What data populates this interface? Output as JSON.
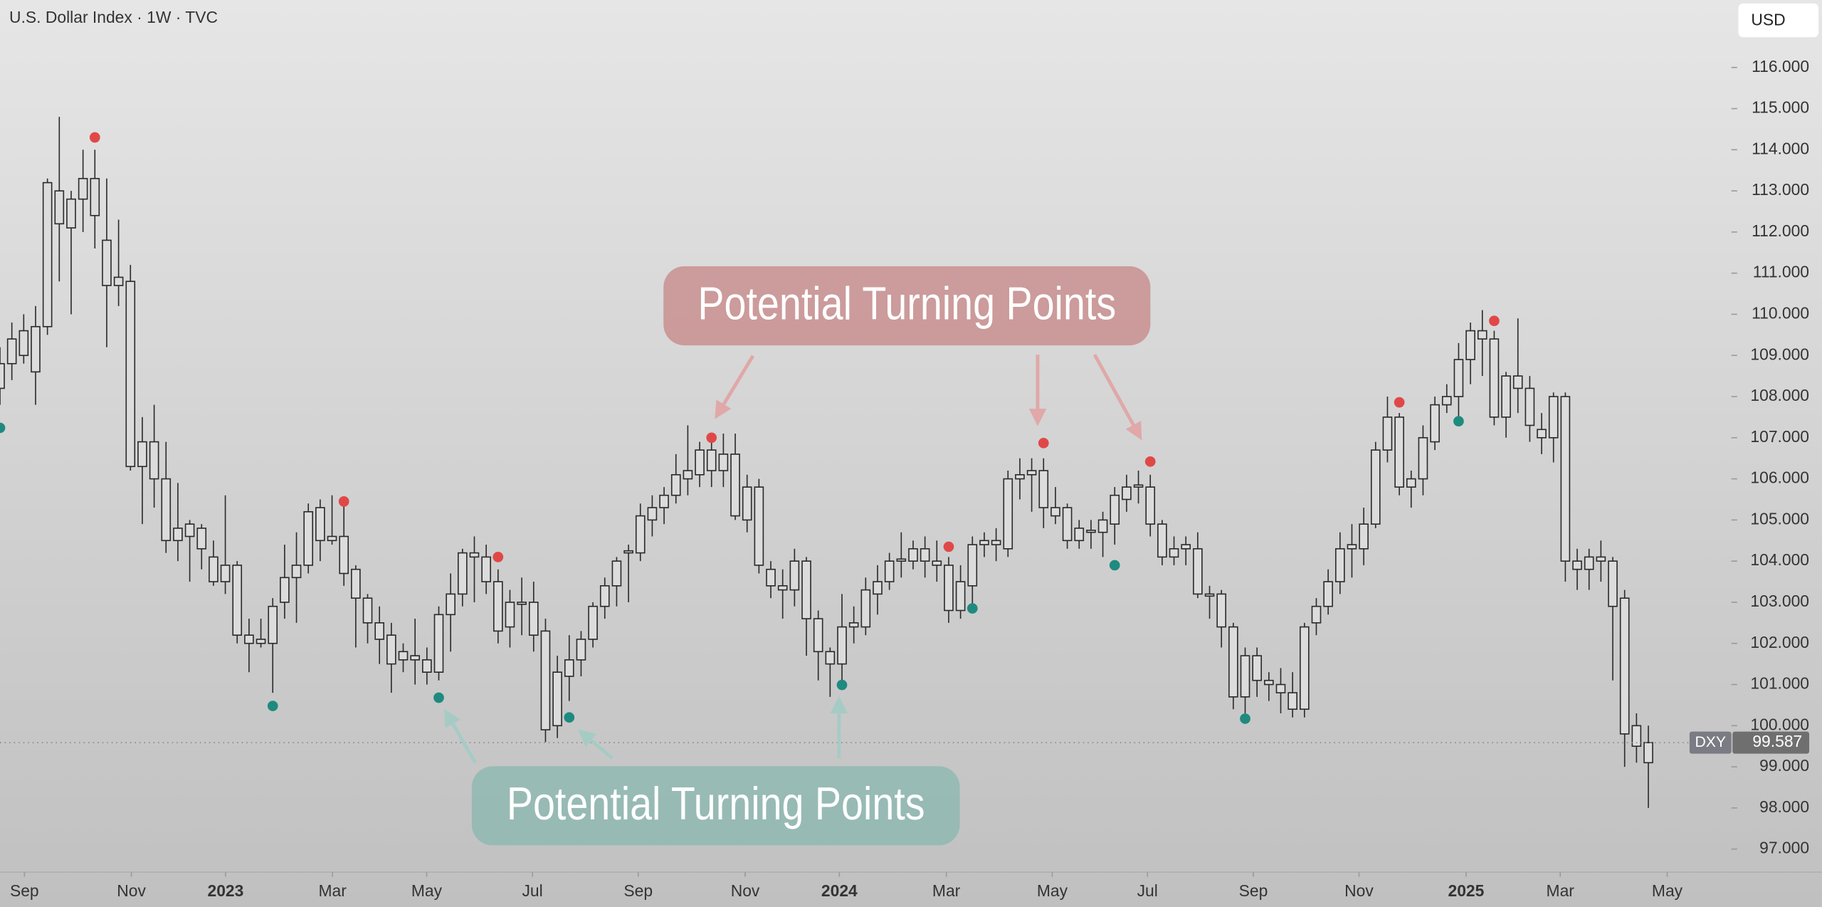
{
  "chart_data": {
    "type": "candlestick",
    "title": "U.S. Dollar Index · 1W · TVC",
    "currency": "USD",
    "series": [
      {
        "name": "DXY",
        "color": "#2b2b2b",
        "fill": "#dcdcdc",
        "open": [
          108.2,
          108.8,
          109.0,
          108.6,
          109.7,
          112.2,
          112.1,
          112.8,
          113.3,
          111.8,
          110.9,
          110.8,
          106.3,
          106.9,
          106.0,
          104.5,
          104.6,
          104.8,
          104.1,
          103.5,
          103.9,
          102.2,
          102.1,
          102.0,
          103.0,
          103.6,
          103.9,
          104.5,
          104.6,
          104.6,
          103.8,
          103.1,
          102.5,
          102.2,
          101.6,
          101.6,
          101.6,
          101.3,
          102.7,
          103.2,
          104.2,
          104.1,
          103.5,
          102.4,
          103.0,
          103.0,
          102.3,
          100.0,
          101.2,
          101.6,
          102.1,
          102.9,
          103.4,
          104.2,
          104.2,
          105.0,
          105.3,
          105.6,
          106.0,
          106.1,
          106.7,
          106.2,
          106.6,
          105.0,
          105.8,
          103.8,
          103.4,
          103.3,
          104.0,
          102.6,
          101.8,
          101.5,
          102.4,
          102.4,
          103.2,
          103.5,
          104.0,
          104.0,
          104.3,
          104.0,
          103.9,
          102.8,
          103.4,
          104.4,
          104.5,
          104.3,
          106.0,
          106.1,
          106.2,
          105.3,
          105.3,
          104.5,
          104.7,
          104.7,
          104.9,
          105.5,
          105.8,
          105.8,
          104.9,
          104.1,
          104.4,
          104.3,
          103.2,
          103.2,
          102.4,
          100.7,
          101.7,
          101.1,
          101.0,
          100.8,
          100.4,
          102.5,
          102.9,
          103.5,
          104.3,
          104.3,
          104.9,
          106.7,
          107.5,
          105.8,
          106.0,
          106.9,
          107.8,
          108.0,
          108.9,
          109.6,
          109.4,
          107.5,
          108.5,
          108.2,
          107.2,
          107.0,
          108.0,
          104.0,
          103.8,
          104.1,
          104.0,
          103.1,
          100.0,
          99.1
        ],
        "high": [
          109.2,
          109.8,
          110.0,
          110.2,
          113.3,
          114.8,
          113.0,
          114.0,
          114.0,
          113.3,
          112.3,
          111.2,
          107.5,
          107.8,
          106.9,
          105.9,
          105.0,
          104.9,
          104.5,
          105.6,
          104.0,
          102.6,
          102.6,
          103.1,
          104.4,
          104.7,
          105.4,
          105.5,
          105.6,
          105.4,
          103.9,
          103.2,
          102.9,
          102.5,
          102.0,
          102.6,
          101.9,
          102.9,
          103.7,
          104.3,
          104.6,
          104.4,
          103.8,
          103.3,
          103.6,
          103.5,
          102.6,
          101.7,
          102.2,
          102.3,
          103.0,
          103.6,
          104.1,
          104.4,
          105.4,
          105.6,
          105.8,
          106.6,
          107.3,
          106.9,
          107.0,
          107.1,
          107.1,
          106.1,
          106.0,
          104.0,
          103.8,
          104.3,
          104.1,
          102.8,
          101.9,
          103.2,
          102.9,
          103.6,
          103.9,
          104.2,
          104.7,
          104.5,
          104.6,
          104.5,
          104.1,
          103.9,
          104.6,
          104.7,
          104.8,
          106.2,
          106.5,
          106.5,
          106.5,
          105.8,
          105.4,
          105.0,
          105.0,
          105.2,
          105.8,
          106.1,
          106.2,
          106.1,
          105.0,
          104.6,
          104.6,
          104.7,
          103.4,
          103.3,
          102.5,
          101.9,
          101.9,
          101.3,
          101.4,
          101.3,
          102.5,
          103.1,
          103.8,
          104.7,
          104.9,
          105.3,
          106.9,
          108.0,
          107.6,
          106.2,
          107.3,
          108.0,
          108.3,
          109.3,
          109.8,
          110.1,
          109.6,
          108.6,
          109.9,
          108.5,
          107.6,
          108.1,
          108.1,
          104.3,
          104.3,
          104.5,
          104.1,
          103.3,
          100.3,
          100.0
        ],
        "low": [
          107.8,
          108.4,
          108.8,
          107.8,
          109.5,
          110.8,
          110.0,
          112.0,
          111.6,
          109.2,
          110.2,
          106.2,
          104.9,
          105.3,
          104.2,
          104.0,
          103.5,
          103.8,
          103.4,
          103.2,
          102.0,
          101.3,
          101.9,
          100.8,
          102.6,
          102.5,
          103.7,
          104.0,
          104.4,
          103.4,
          101.9,
          102.0,
          101.5,
          100.8,
          101.3,
          101.0,
          101.0,
          101.1,
          101.8,
          102.9,
          103.0,
          103.2,
          102.0,
          101.9,
          102.2,
          101.8,
          99.6,
          99.7,
          100.6,
          101.2,
          101.9,
          102.6,
          102.9,
          103.0,
          104.0,
          104.6,
          104.9,
          105.4,
          105.6,
          105.8,
          105.8,
          105.8,
          105.0,
          104.7,
          103.7,
          103.1,
          102.6,
          102.9,
          101.7,
          101.1,
          100.7,
          101.1,
          102.0,
          102.2,
          102.7,
          103.3,
          103.6,
          103.8,
          103.6,
          103.5,
          102.5,
          102.6,
          102.9,
          104.1,
          104.0,
          104.1,
          105.5,
          105.2,
          104.8,
          104.9,
          104.3,
          104.3,
          104.3,
          104.1,
          104.4,
          105.2,
          105.4,
          104.6,
          103.9,
          103.9,
          103.9,
          103.1,
          102.6,
          101.9,
          100.4,
          100.3,
          100.7,
          100.6,
          100.3,
          100.2,
          100.2,
          102.2,
          102.7,
          103.2,
          103.6,
          103.9,
          104.8,
          106.4,
          105.6,
          105.3,
          105.6,
          106.7,
          107.6,
          107.4,
          108.3,
          108.5,
          107.3,
          107.0,
          107.6,
          106.9,
          106.6,
          106.4,
          103.5,
          103.3,
          103.3,
          103.5,
          101.1,
          99.0,
          99.1,
          98.0
        ],
        "close": [
          108.8,
          109.4,
          109.6,
          109.7,
          113.2,
          113.0,
          112.8,
          113.3,
          112.4,
          110.7,
          110.7,
          106.3,
          106.9,
          106.0,
          104.5,
          104.8,
          104.9,
          104.3,
          103.5,
          103.9,
          102.2,
          102.0,
          102.0,
          102.9,
          103.6,
          103.9,
          105.2,
          105.3,
          104.5,
          103.7,
          103.1,
          102.5,
          102.1,
          101.5,
          101.8,
          101.7,
          101.3,
          102.7,
          103.2,
          104.2,
          104.1,
          103.5,
          102.3,
          103.0,
          102.95,
          102.2,
          99.9,
          101.3,
          101.6,
          102.1,
          102.9,
          103.4,
          104.0,
          104.25,
          105.1,
          105.3,
          105.6,
          106.1,
          106.2,
          106.7,
          106.2,
          106.6,
          105.1,
          105.8,
          103.9,
          103.4,
          103.3,
          104.0,
          102.6,
          101.8,
          101.5,
          102.4,
          102.5,
          103.3,
          103.5,
          104.0,
          104.05,
          104.3,
          104.0,
          103.9,
          102.8,
          103.5,
          104.4,
          104.5,
          104.4,
          106.0,
          106.1,
          106.2,
          105.3,
          105.1,
          104.5,
          104.8,
          104.75,
          105.0,
          105.6,
          105.8,
          105.85,
          104.9,
          104.1,
          104.3,
          104.3,
          103.2,
          103.15,
          102.4,
          100.7,
          101.7,
          101.1,
          101.0,
          100.8,
          100.4,
          102.4,
          102.9,
          103.5,
          104.3,
          104.4,
          104.9,
          106.7,
          107.5,
          105.8,
          106.0,
          107.0,
          107.8,
          108.0,
          108.9,
          109.6,
          109.4,
          107.5,
          108.5,
          108.2,
          107.3,
          107.0,
          108.0,
          104.0,
          103.8,
          104.1,
          104.0,
          102.9,
          99.8,
          99.5,
          99.587
        ]
      }
    ],
    "markers": [
      {
        "color": "#e04848",
        "x": [
          8,
          29,
          42,
          60,
          80,
          88,
          97,
          118,
          126
        ],
        "values": [
          114.3,
          105.45,
          104.1,
          107.0,
          104.35,
          106.87,
          106.42,
          107.86,
          109.84
        ]
      },
      {
        "color": "#1f8a7f",
        "x": [
          0,
          23,
          37,
          48,
          71,
          82,
          94,
          105,
          123
        ],
        "values": [
          107.24,
          100.48,
          100.68,
          100.2,
          100.99,
          102.85,
          103.9,
          100.17,
          107.4
        ]
      }
    ],
    "annotations": [
      {
        "text": "Potential Turning Points",
        "color": "#c98f8f"
      },
      {
        "text": "Potential Turning Points",
        "color": "#8fb8b2"
      }
    ],
    "xlim": [
      0,
      146
    ],
    "ylim": [
      96.44,
      117.64
    ],
    "xticks": [
      {
        "value": 2.06,
        "label": "Sep"
      },
      {
        "value": 11.08,
        "label": "Nov"
      },
      {
        "value": 19.02,
        "label": "2023"
      },
      {
        "value": 28.04,
        "label": "Mar"
      },
      {
        "value": 35.98,
        "label": "May"
      },
      {
        "value": 44.9,
        "label": "Jul"
      },
      {
        "value": 53.82,
        "label": "Sep"
      },
      {
        "value": 62.84,
        "label": "Nov"
      },
      {
        "value": 70.78,
        "label": "2024"
      },
      {
        "value": 79.8,
        "label": "Mar"
      },
      {
        "value": 88.73,
        "label": "May"
      },
      {
        "value": 96.76,
        "label": "Jul"
      },
      {
        "value": 105.69,
        "label": "Sep"
      },
      {
        "value": 114.6,
        "label": "Nov"
      },
      {
        "value": 123.63,
        "label": "2025"
      },
      {
        "value": 131.57,
        "label": "Mar"
      },
      {
        "value": 140.59,
        "label": "May"
      }
    ],
    "yticks": [
      {
        "value": 97,
        "label": "97.000"
      },
      {
        "value": 98,
        "label": "98.000"
      },
      {
        "value": 99,
        "label": "99.000"
      },
      {
        "value": 100,
        "label": "100.000"
      },
      {
        "value": 101,
        "label": "101.000"
      },
      {
        "value": 102,
        "label": "102.000"
      },
      {
        "value": 103,
        "label": "103.000"
      },
      {
        "value": 104,
        "label": "104.000"
      },
      {
        "value": 105,
        "label": "105.000"
      },
      {
        "value": 106,
        "label": "106.000"
      },
      {
        "value": 107,
        "label": "107.000"
      },
      {
        "value": 108,
        "label": "108.000"
      },
      {
        "value": 109,
        "label": "109.000"
      },
      {
        "value": 110,
        "label": "110.000"
      },
      {
        "value": 111,
        "label": "111.000"
      },
      {
        "value": 112,
        "label": "112.000"
      },
      {
        "value": 113,
        "label": "113.000"
      },
      {
        "value": 114,
        "label": "114.000"
      },
      {
        "value": 115,
        "label": "115.000"
      },
      {
        "value": 116,
        "label": "116.000"
      }
    ]
  }
}
